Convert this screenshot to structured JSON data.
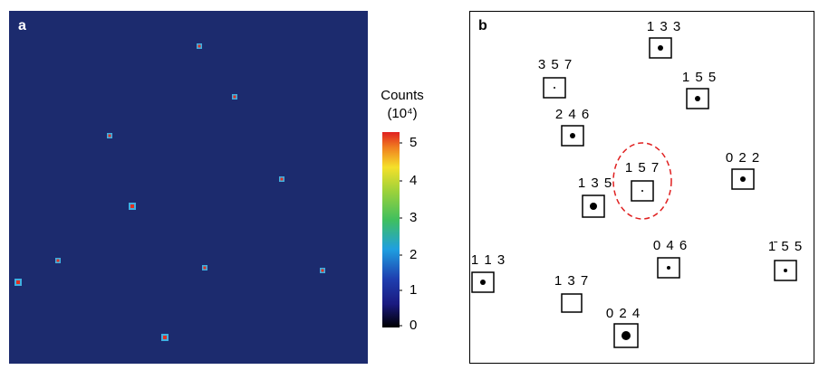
{
  "panel_a": {
    "label": "a",
    "colorbar": {
      "title": "Counts",
      "unit": "(10⁴)",
      "ticks": [
        "5",
        "4",
        "3",
        "2",
        "1",
        "0"
      ]
    }
  },
  "panel_b": {
    "label": "b",
    "spots": [
      "1 3 3",
      "3 5 7",
      "1 5 5",
      "2 4 6",
      "0 2 2",
      "1 5 7",
      "1 3 5",
      "1 1 3",
      "0 4 6",
      "1̄ 5 5",
      "1 3 7",
      "0 2 4"
    ]
  }
}
